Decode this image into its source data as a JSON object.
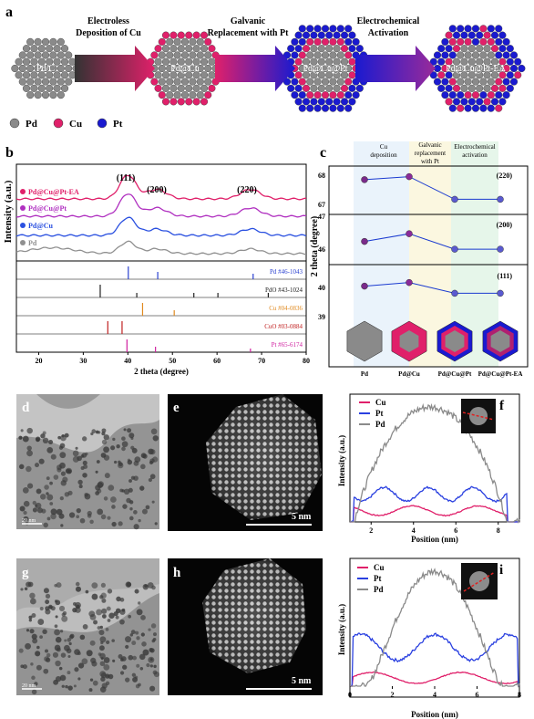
{
  "panel_labels": {
    "a": "a",
    "b": "b",
    "c": "c",
    "d": "d",
    "e": "e",
    "f": "f",
    "g": "g",
    "h": "h",
    "i": "i"
  },
  "scheme": {
    "stage_labels": [
      "Pd/C",
      "Pd@Cu",
      "Pd@Cu@Pt",
      "Pd@Cu@Pt-EA"
    ],
    "arrow1_line1": "Electroless",
    "arrow1_line2": "Deposition of Cu",
    "arrow2_line1": "Galvanic",
    "arrow2_line2": "Replacement with Pt",
    "arrow3_line1": "Electrochemical",
    "arrow3_line2": "Activation",
    "legend": [
      {
        "label": "Pd",
        "color": "#8a8a8a"
      },
      {
        "label": "Cu",
        "color": "#e0206a"
      },
      {
        "label": "Pt",
        "color": "#1a1ad0"
      }
    ]
  },
  "chart_b": {
    "xlabel": "2 theta (degree)",
    "ylabel": "Intensity (a.u.)",
    "peak_labels": [
      "(111)",
      "(200)",
      "(220)"
    ],
    "legend": [
      {
        "label": "Pd@Cu@Pt-EA",
        "color": "#e0206a"
      },
      {
        "label": "Pd@Cu@Pt",
        "color": "#b030c0"
      },
      {
        "label": "Pd@Cu",
        "color": "#2a50e0"
      },
      {
        "label": "Pd",
        "color": "#909090"
      }
    ],
    "references": [
      {
        "label": "Pd #46-1043",
        "color": "#2a40d0"
      },
      {
        "label": "PdO #43-1024",
        "color": "#222222"
      },
      {
        "label": "Cu #04-0836",
        "color": "#e08a20"
      },
      {
        "label": "CuO #03-0884",
        "color": "#c02020"
      },
      {
        "label": "Pt #65-6174",
        "color": "#d020a0"
      }
    ],
    "x_ticks": [
      "20",
      "30",
      "40",
      "50",
      "60",
      "70",
      "80"
    ]
  },
  "chart_c": {
    "ylabel": "2 theta (degree)",
    "headers": [
      "Cu deposition",
      "Galvanic replacement with Pt",
      "Electrochemical activation"
    ],
    "header_lines": [
      [
        "Cu",
        "deposition"
      ],
      [
        "Galvanic",
        "replacement",
        "with Pt"
      ],
      [
        "Electrochemical",
        "activation"
      ]
    ],
    "panels": [
      {
        "label": "(220)",
        "ticks": [
          "68",
          "67"
        ]
      },
      {
        "label": "(200)",
        "ticks": [
          "47",
          "46"
        ]
      },
      {
        "label": "(111)",
        "ticks": [
          "40",
          "39"
        ]
      }
    ],
    "categories": [
      "Pd",
      "Pd@Cu",
      "Pd@Cu@Pt",
      "Pd@Cu@Pt-EA"
    ]
  },
  "chart_data": [
    {
      "type": "line",
      "panel": "b",
      "xlabel": "2 theta (degree)",
      "ylabel": "Intensity (a.u.)",
      "xlim": [
        15,
        80
      ],
      "series": [
        {
          "name": "Pd@Cu@Pt-EA",
          "peaks": [
            {
              "x": 40.0,
              "h": 20
            },
            {
              "x": 46.5,
              "h": 8
            },
            {
              "x": 67.5,
              "h": 8
            }
          ]
        },
        {
          "name": "Pd@Cu@Pt",
          "peaks": [
            {
              "x": 40.0,
              "h": 19
            },
            {
              "x": 46.5,
              "h": 7
            },
            {
              "x": 67.5,
              "h": 7
            }
          ]
        },
        {
          "name": "Pd@Cu",
          "peaks": [
            {
              "x": 40.0,
              "h": 14
            },
            {
              "x": 46.5,
              "h": 5
            },
            {
              "x": 67.5,
              "h": 5
            }
          ]
        },
        {
          "name": "Pd",
          "peaks": [
            {
              "x": 40.0,
              "h": 10
            },
            {
              "x": 46.5,
              "h": 4
            },
            {
              "x": 67.5,
              "h": 4
            }
          ]
        }
      ],
      "reference_lines": [
        {
          "name": "Pd #46-1043",
          "x": [
            40.1,
            46.7,
            68.1
          ]
        },
        {
          "name": "PdO #43-1024",
          "x": [
            33.8,
            42.0,
            54.8,
            60.2,
            71.5
          ]
        },
        {
          "name": "Cu #04-0836",
          "x": [
            43.3,
            50.4
          ]
        },
        {
          "name": "CuO #03-0884",
          "x": [
            35.5,
            38.7
          ]
        },
        {
          "name": "Pt #65-6174",
          "x": [
            39.8,
            46.2,
            67.5
          ]
        }
      ]
    },
    {
      "type": "line",
      "panel": "c",
      "categories": [
        "Pd",
        "Pd@Cu",
        "Pd@Cu@Pt",
        "Pd@Cu@Pt-EA"
      ],
      "series": [
        {
          "name": "(220)",
          "values": [
            67.95,
            68.05,
            67.3,
            67.3
          ],
          "ylim": [
            66.8,
            68.4
          ]
        },
        {
          "name": "(200)",
          "values": [
            46.3,
            46.5,
            46.1,
            46.1
          ],
          "ylim": [
            45.7,
            47.0
          ]
        },
        {
          "name": "(111)",
          "values": [
            39.8,
            39.9,
            39.6,
            39.6
          ],
          "ylim": [
            39.0,
            40.4
          ]
        }
      ]
    },
    {
      "type": "line",
      "panel": "f",
      "xlabel": "Position (nm)",
      "ylabel": "Intensity (a.u.)",
      "xlim": [
        1,
        9
      ],
      "x_ticks": [
        "2",
        "4",
        "6",
        "8"
      ],
      "legend": [
        {
          "name": "Cu",
          "color": "#e0206a"
        },
        {
          "name": "Pt",
          "color": "#2a40e0"
        },
        {
          "name": "Pd",
          "color": "#8a8a8a"
        }
      ],
      "series": [
        {
          "name": "Cu",
          "values_peak": 0.14
        },
        {
          "name": "Pt",
          "values_peak": 0.3
        },
        {
          "name": "Pd",
          "values_peak": 1.0
        }
      ]
    },
    {
      "type": "line",
      "panel": "i",
      "xlabel": "Position (nm)",
      "ylabel": "Intensity (a.u.)",
      "xlim": [
        0,
        8
      ],
      "x_ticks": [
        "0",
        "2",
        "4",
        "6",
        "8"
      ],
      "legend": [
        {
          "name": "Cu",
          "color": "#e0206a"
        },
        {
          "name": "Pt",
          "color": "#2a40e0"
        },
        {
          "name": "Pd",
          "color": "#8a8a8a"
        }
      ],
      "series": [
        {
          "name": "Cu",
          "values_peak": 0.12
        },
        {
          "name": "Pt",
          "values_peak": 0.45
        },
        {
          "name": "Pd",
          "values_peak": 1.0
        }
      ]
    }
  ],
  "images": {
    "d_scale": "20 nm",
    "e_scale": "5 nm",
    "g_scale": "20 nm",
    "h_scale": "5 nm"
  }
}
